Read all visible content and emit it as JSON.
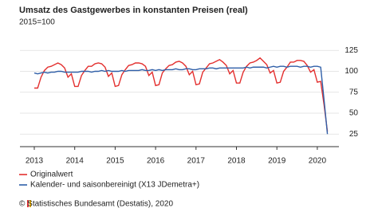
{
  "chart_data": {
    "type": "line",
    "title": "Umsatz des Gastgewerbes in konstanten Preisen (real)",
    "subtitle": "2015=100",
    "source": "© Statistisches Bundesamt (Destatis), 2020",
    "categories": [
      "2013",
      null,
      null,
      null,
      null,
      null,
      null,
      null,
      null,
      null,
      null,
      null,
      "2014",
      null,
      null,
      null,
      null,
      null,
      null,
      null,
      null,
      null,
      null,
      null,
      "2015",
      null,
      null,
      null,
      null,
      null,
      null,
      null,
      null,
      null,
      null,
      null,
      "2016",
      null,
      null,
      null,
      null,
      null,
      null,
      null,
      null,
      null,
      null,
      null,
      "2017",
      null,
      null,
      null,
      null,
      null,
      null,
      null,
      null,
      null,
      null,
      null,
      "2018",
      null,
      null,
      null,
      null,
      null,
      null,
      null,
      null,
      null,
      null,
      null,
      "2019",
      null,
      null,
      null,
      null,
      null,
      null,
      null,
      null,
      null,
      null,
      null,
      "2020",
      null,
      null,
      null
    ],
    "series": [
      {
        "name": "Originalwert",
        "color": "#e3302f",
        "values": [
          80,
          80,
          93,
          101,
          105,
          106,
          108,
          110,
          108,
          104,
          93,
          97,
          82,
          82,
          95,
          101,
          106,
          106,
          109,
          110,
          109,
          105,
          94,
          98,
          82,
          83,
          96,
          102,
          107,
          108,
          110,
          110,
          109,
          106,
          95,
          99,
          83,
          84,
          98,
          103,
          107,
          108,
          111,
          112,
          110,
          106,
          96,
          100,
          84,
          85,
          99,
          104,
          109,
          110,
          112,
          114,
          111,
          107,
          97,
          101,
          86,
          86,
          99,
          106,
          110,
          111,
          113,
          116,
          112,
          108,
          98,
          101,
          86,
          87,
          100,
          105,
          111,
          111,
          113,
          113,
          112,
          107,
          99,
          102,
          87,
          88,
          60,
          28
        ]
      },
      {
        "name": "Kalender- und saisonbereinigt (X13 JDemetra+)",
        "color": "#2f5fa8",
        "values": [
          98,
          97,
          98,
          99,
          98,
          99,
          99,
          100,
          100,
          99,
          99,
          99,
          99,
          99,
          100,
          100,
          100,
          99,
          100,
          100,
          101,
          100,
          101,
          100,
          100,
          100,
          101,
          100,
          101,
          101,
          101,
          101,
          102,
          101,
          101,
          102,
          101,
          102,
          101,
          102,
          102,
          102,
          103,
          102,
          102,
          103,
          103,
          102,
          102,
          103,
          103,
          103,
          104,
          104,
          103,
          104,
          104,
          104,
          104,
          104,
          104,
          104,
          104,
          105,
          104,
          105,
          105,
          105,
          105,
          104,
          105,
          106,
          105,
          106,
          106,
          105,
          106,
          106,
          106,
          105,
          106,
          106,
          105,
          106,
          106,
          105,
          66,
          25
        ]
      }
    ],
    "ylim": [
      10,
      130
    ],
    "yticks": [
      25,
      50,
      75,
      100,
      125
    ],
    "grid": true
  }
}
